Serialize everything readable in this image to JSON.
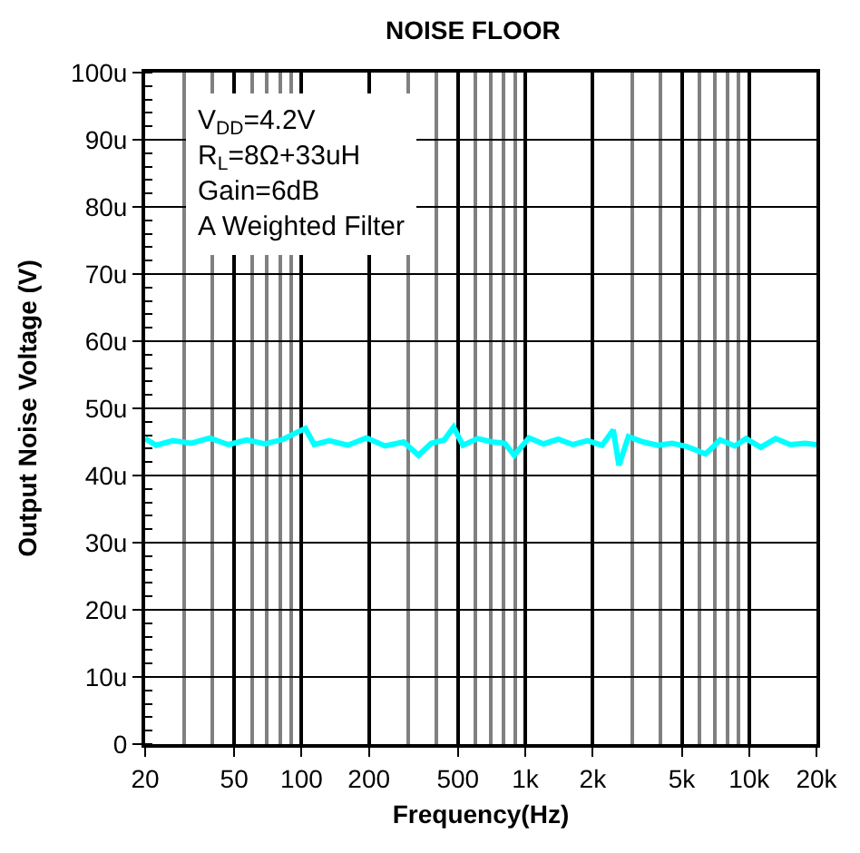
{
  "chart_data": {
    "type": "line",
    "title": "NOISE FLOOR",
    "xlabel": "Frequency(Hz)",
    "ylabel": "Output Noise Voltage (V)",
    "annotations": [
      "V$_{DD}$=4.2V",
      "R$_{L}$=8Ω+33uH",
      "Gain=6dB",
      "A Weighted Filter"
    ],
    "log": "x",
    "grid": true,
    "marker": "none",
    "line_style": "solid",
    "xlim": [
      20,
      20000
    ],
    "xticks": [
      20,
      50,
      100,
      200,
      500,
      {
        "value": 1000,
        "label": "1k"
      },
      {
        "value": 2000,
        "label": "2k"
      },
      {
        "value": 5000,
        "label": "5k"
      },
      {
        "value": 10000,
        "label": "10k"
      },
      {
        "value": 20000,
        "label": "20k"
      }
    ],
    "ylim": [
      0,
      100
    ],
    "yticks": [
      0,
      {
        "value": 10,
        "label": "10u"
      },
      {
        "value": 20,
        "label": "20u"
      },
      {
        "value": 30,
        "label": "30u"
      },
      {
        "value": 40,
        "label": "40u"
      },
      {
        "value": 50,
        "label": "50u"
      },
      {
        "value": 60,
        "label": "60u"
      },
      {
        "value": 70,
        "label": "70u"
      },
      {
        "value": 80,
        "label": "80u"
      },
      {
        "value": 90,
        "label": "90u"
      },
      {
        "value": 100,
        "label": "100u"
      }
    ],
    "x": [
      20,
      22.4,
      26.6,
      32.2,
      38.9,
      47,
      56.8,
      68.7,
      83,
      95,
      104,
      114,
      133,
      161,
      195,
      236,
      286,
      333,
      380,
      434,
      478,
      526,
      612,
      710,
      810,
      892,
      1038,
      1206,
      1402,
      1630,
      1896,
      2204,
      2472,
      2620,
      2889,
      3358,
      3904,
      4538,
      5277,
      6386,
      7428,
      8637,
      9690,
      11270,
      13140,
      15280,
      17770,
      20000
    ],
    "series": [
      {
        "color": "#00ffff",
        "values": [
          45.5,
          44.5,
          45.2,
          44.8,
          45.6,
          44.6,
          45.3,
          44.7,
          45.4,
          46.4,
          47,
          44.6,
          45.2,
          44.5,
          45.6,
          44.4,
          45,
          43,
          44.8,
          45.3,
          47.2,
          44.5,
          45.5,
          45,
          44.8,
          43,
          45.6,
          44.7,
          45.4,
          44.6,
          45.2,
          44.5,
          46.8,
          41.5,
          45.8,
          45,
          44.5,
          44.8,
          44.3,
          43.2,
          45.3,
          44.4,
          45.5,
          44.2,
          45.5,
          44.6,
          44.8,
          44.6
        ]
      }
    ]
  }
}
